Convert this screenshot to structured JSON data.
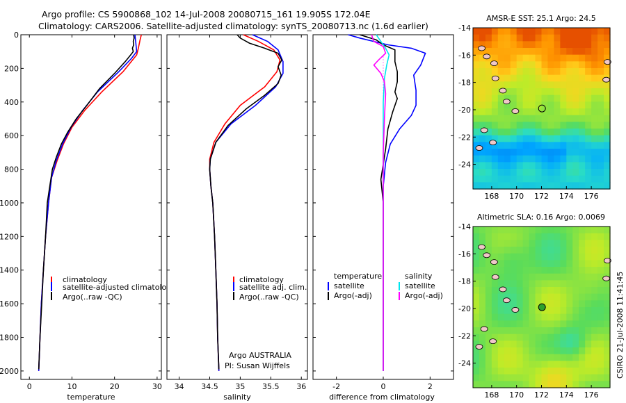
{
  "title_line1": "Argo profile: CS 5900868_102 14-Jul-2008 20080715_161 19.905S 172.04E",
  "title_line2": "Climatology: CARS2006. Satellite-adjusted climatology: synTS_20080713.nc (1.6d earlier)",
  "side_stamp": "CSIRO 21-Jul-2008 11:41:45",
  "colors": {
    "climatology": "#ff0000",
    "satellite": "#0000ff",
    "argo": "#000000",
    "sal_sat": "#00e5ee",
    "sal_argo": "#ff00ff",
    "zero_line": "#ff00ff"
  },
  "chart_data": [
    {
      "id": "temperature",
      "type": "line",
      "xlabel": "temperature",
      "ylabel": "",
      "xlim": [
        -2,
        31
      ],
      "ylim": [
        0,
        2050
      ],
      "y_reversed": true,
      "xticks": [
        "0",
        "10",
        "20",
        "30"
      ],
      "xtick_values": [
        0,
        10,
        20,
        30
      ],
      "yticks": [
        "0",
        "200",
        "400",
        "600",
        "800",
        "1000",
        "1200",
        "1400",
        "1600",
        "1800",
        "2000"
      ],
      "ytick_values": [
        0,
        200,
        400,
        600,
        800,
        1000,
        1200,
        1400,
        1600,
        1800,
        2000
      ],
      "legend": [
        "climatology",
        "satellite-adjusted climatolog",
        "Argo(..raw -QC)"
      ],
      "series": [
        {
          "name": "climatology",
          "color": "climatology",
          "points": [
            [
              26.3,
              0
            ],
            [
              26,
              30
            ],
            [
              25.6,
              80
            ],
            [
              25.2,
              120
            ],
            [
              22,
              220
            ],
            [
              17,
              340
            ],
            [
              13,
              450
            ],
            [
              10,
              550
            ],
            [
              8,
              650
            ],
            [
              6.5,
              750
            ],
            [
              5.2,
              850
            ],
            [
              4.5,
              1000
            ],
            [
              3.8,
              1200
            ],
            [
              3.3,
              1400
            ],
            [
              2.8,
              1600
            ],
            [
              2.5,
              1800
            ],
            [
              2.2,
              2000
            ]
          ]
        },
        {
          "name": "satellite",
          "color": "satellite",
          "points": [
            [
              24.8,
              0
            ],
            [
              25,
              50
            ],
            [
              25.2,
              100
            ],
            [
              24,
              140
            ],
            [
              21,
              220
            ],
            [
              16,
              340
            ],
            [
              12.5,
              450
            ],
            [
              9.8,
              550
            ],
            [
              7.8,
              650
            ],
            [
              6.3,
              750
            ],
            [
              5.2,
              850
            ],
            [
              4.5,
              1000
            ],
            [
              3.8,
              1200
            ],
            [
              3.3,
              1400
            ],
            [
              2.8,
              1600
            ],
            [
              2.5,
              1800
            ],
            [
              2.2,
              2000
            ]
          ]
        },
        {
          "name": "argo",
          "color": "argo",
          "points": [
            [
              24.5,
              0
            ],
            [
              24.6,
              20
            ],
            [
              24.4,
              40
            ],
            [
              24.5,
              60
            ],
            [
              24.2,
              80
            ],
            [
              24.4,
              100
            ],
            [
              23.8,
              120
            ],
            [
              22.5,
              160
            ],
            [
              20,
              230
            ],
            [
              16.5,
              320
            ],
            [
              13.5,
              420
            ],
            [
              11,
              500
            ],
            [
              9,
              580
            ],
            [
              7.5,
              650
            ],
            [
              6.3,
              730
            ],
            [
              5.4,
              800
            ],
            [
              4.8,
              900
            ],
            [
              4.2,
              1000
            ],
            [
              3.8,
              1200
            ],
            [
              3.3,
              1400
            ],
            [
              2.9,
              1600
            ],
            [
              2.5,
              1800
            ],
            [
              2.2,
              1990
            ]
          ]
        }
      ]
    },
    {
      "id": "salinity",
      "type": "line",
      "xlabel": "salinity",
      "ylabel": "",
      "xlim": [
        33.8,
        36.1
      ],
      "ylim": [
        0,
        2050
      ],
      "y_reversed": true,
      "xticks": [
        "34",
        "34.5",
        "35",
        "35.5",
        "36"
      ],
      "xtick_values": [
        34,
        34.5,
        35,
        35.5,
        36
      ],
      "legend": [
        "climatology",
        "satellite adj. clim.",
        "Argo(..raw -QC)"
      ],
      "annotations": [
        "Argo AUSTRALIA",
        "PI: Susan Wijffels"
      ],
      "series": [
        {
          "name": "climatology",
          "color": "climatology",
          "points": [
            [
              35.05,
              0
            ],
            [
              35.3,
              40
            ],
            [
              35.55,
              90
            ],
            [
              35.65,
              150
            ],
            [
              35.6,
              220
            ],
            [
              35.4,
              310
            ],
            [
              35.0,
              420
            ],
            [
              34.75,
              530
            ],
            [
              34.57,
              640
            ],
            [
              34.5,
              740
            ],
            [
              34.5,
              800
            ],
            [
              34.52,
              900
            ],
            [
              34.55,
              1000
            ],
            [
              34.58,
              1200
            ],
            [
              34.6,
              1400
            ],
            [
              34.62,
              1600
            ],
            [
              34.63,
              1800
            ],
            [
              34.65,
              2000
            ]
          ]
        },
        {
          "name": "satellite",
          "color": "satellite",
          "points": [
            [
              35.2,
              0
            ],
            [
              35.45,
              40
            ],
            [
              35.62,
              90
            ],
            [
              35.7,
              160
            ],
            [
              35.7,
              230
            ],
            [
              35.58,
              310
            ],
            [
              35.25,
              420
            ],
            [
              34.85,
              530
            ],
            [
              34.6,
              640
            ],
            [
              34.51,
              740
            ],
            [
              34.5,
              800
            ],
            [
              34.52,
              900
            ],
            [
              34.55,
              1000
            ],
            [
              34.58,
              1200
            ],
            [
              34.6,
              1400
            ],
            [
              34.62,
              1600
            ],
            [
              34.63,
              1800
            ],
            [
              34.65,
              2000
            ]
          ]
        },
        {
          "name": "argo",
          "color": "argo",
          "points": [
            [
              34.95,
              0
            ],
            [
              35.0,
              20
            ],
            [
              35.15,
              50
            ],
            [
              35.4,
              80
            ],
            [
              35.62,
              110
            ],
            [
              35.68,
              150
            ],
            [
              35.62,
              190
            ],
            [
              35.67,
              240
            ],
            [
              35.62,
              290
            ],
            [
              35.4,
              360
            ],
            [
              35.1,
              440
            ],
            [
              34.8,
              540
            ],
            [
              34.6,
              640
            ],
            [
              34.51,
              740
            ],
            [
              34.5,
              800
            ],
            [
              34.52,
              900
            ],
            [
              34.55,
              1000
            ],
            [
              34.58,
              1200
            ],
            [
              34.6,
              1400
            ],
            [
              34.62,
              1600
            ],
            [
              34.63,
              1800
            ],
            [
              34.65,
              1990
            ]
          ]
        }
      ]
    },
    {
      "id": "difference",
      "type": "line",
      "xlabel": "difference from climatology",
      "ylabel": "",
      "xlim": [
        -3,
        3
      ],
      "ylim": [
        0,
        2050
      ],
      "y_reversed": true,
      "xticks": [
        "-2",
        "0",
        "2"
      ],
      "xtick_values": [
        -2,
        0,
        2
      ],
      "legend_headers": [
        "temperature",
        "salinity"
      ],
      "legend": [
        "satellite",
        "Argo(-adj)",
        "satellite",
        "Argo(-adj)"
      ],
      "series": [
        {
          "name": "temperature satellite",
          "color": "satellite",
          "points": [
            [
              -1.5,
              0
            ],
            [
              -1,
              20
            ],
            [
              0.2,
              60
            ],
            [
              1.2,
              80
            ],
            [
              1.8,
              110
            ],
            [
              1.6,
              180
            ],
            [
              1.3,
              240
            ],
            [
              1.4,
              330
            ],
            [
              1.4,
              420
            ],
            [
              1.2,
              480
            ],
            [
              0.7,
              560
            ],
            [
              0.3,
              650
            ],
            [
              0.1,
              760
            ],
            [
              0,
              900
            ],
            [
              0,
              2000
            ]
          ]
        },
        {
          "name": "temperature argo",
          "color": "argo",
          "points": [
            [
              -1,
              0
            ],
            [
              -0.3,
              30
            ],
            [
              0,
              60
            ],
            [
              0.5,
              90
            ],
            [
              0.5,
              160
            ],
            [
              0.6,
              220
            ],
            [
              0.6,
              280
            ],
            [
              0.5,
              340
            ],
            [
              0.6,
              380
            ],
            [
              0.4,
              460
            ],
            [
              0.2,
              560
            ],
            [
              0.1,
              680
            ],
            [
              -0.1,
              860
            ],
            [
              0,
              1000
            ],
            [
              0,
              2000
            ]
          ]
        },
        {
          "name": "salinity satellite",
          "color": "sal_sat",
          "points": [
            [
              -0.3,
              0
            ],
            [
              -0.1,
              40
            ],
            [
              0.1,
              80
            ],
            [
              0.25,
              120
            ],
            [
              0.15,
              180
            ],
            [
              0.05,
              260
            ],
            [
              0,
              400
            ],
            [
              0,
              800
            ],
            [
              0,
              2000
            ]
          ]
        },
        {
          "name": "salinity argo",
          "color": "sal_argo",
          "points": [
            [
              -0.5,
              0
            ],
            [
              -0.4,
              40
            ],
            [
              0,
              70
            ],
            [
              0.1,
              110
            ],
            [
              -0.2,
              150
            ],
            [
              -0.4,
              180
            ],
            [
              -0.1,
              230
            ],
            [
              0.05,
              280
            ],
            [
              0.1,
              350
            ],
            [
              0.05,
              500
            ],
            [
              0,
              700
            ],
            [
              0,
              2000
            ]
          ]
        }
      ]
    },
    {
      "id": "sst_map",
      "type": "heatmap",
      "title": "AMSR-E SST: 25.1 Argo: 24.5",
      "xlim": [
        166.5,
        177.5
      ],
      "ylim": [
        -25.8,
        -14
      ],
      "xticks": [
        "168",
        "170",
        "172",
        "174",
        "176"
      ],
      "xtick_values": [
        168,
        170,
        172,
        174,
        176
      ],
      "yticks": [
        "-14",
        "-16",
        "-18",
        "-20",
        "-22",
        "-24"
      ],
      "ytick_values": [
        -14,
        -16,
        -18,
        -20,
        -22,
        -24
      ],
      "marker": {
        "lon": 172.04,
        "lat": -19.905,
        "fill": "none"
      }
    },
    {
      "id": "sla_map",
      "type": "heatmap",
      "title": "Altimetric SLA: 0.16 Argo: 0.0069",
      "xlim": [
        166.5,
        177.5
      ],
      "ylim": [
        -25.8,
        -14
      ],
      "xticks": [
        "168",
        "170",
        "172",
        "174",
        "176"
      ],
      "xtick_values": [
        168,
        170,
        172,
        174,
        176
      ],
      "yticks": [
        "-14",
        "-16",
        "-18",
        "-20",
        "-22",
        "-24"
      ],
      "ytick_values": [
        -14,
        -16,
        -18,
        -20,
        -22,
        -24
      ],
      "marker": {
        "lon": 172.04,
        "lat": -19.905,
        "fill": "#2ca02c"
      }
    }
  ]
}
